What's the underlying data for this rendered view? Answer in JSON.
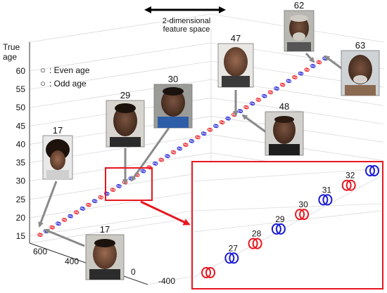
{
  "caption": {
    "line1": "2-dimensional",
    "line2": "feature space"
  },
  "axes": {
    "z_label_line1": "True",
    "z_label_line2": "age",
    "z_ticks": [
      "60",
      "55",
      "50",
      "45",
      "40",
      "35",
      "30",
      "25",
      "20",
      "15"
    ],
    "x_ticks": [
      "600",
      "400"
    ],
    "y_ticks": [
      "0",
      "-400"
    ]
  },
  "legend": {
    "even": {
      "symbol": "○",
      "text": ": Even age",
      "color": "#e8161f"
    },
    "odd": {
      "symbol": "○",
      "text": ": Odd age",
      "color": "#1a1ad6"
    }
  },
  "face_labels": [
    "17",
    "29",
    "30",
    "47",
    "62",
    "63",
    "48",
    "17"
  ],
  "inset_labels": [
    "27",
    "28",
    "29",
    "30",
    "31",
    "32"
  ],
  "chart_data": {
    "type": "scatter",
    "zlabel": "True age",
    "zlim": [
      15,
      65
    ],
    "series": [
      {
        "name": "Even age",
        "color": "#e8161f",
        "ages": [
          16,
          18,
          20,
          22,
          24,
          26,
          28,
          30,
          32,
          34,
          36,
          38,
          40,
          42,
          44,
          46,
          48,
          50,
          52,
          54,
          56,
          58,
          60,
          62
        ]
      },
      {
        "name": "Odd age",
        "color": "#1a1ad6",
        "ages": [
          17,
          19,
          21,
          23,
          25,
          27,
          29,
          31,
          33,
          35,
          37,
          39,
          41,
          43,
          45,
          47,
          49,
          51,
          53,
          55,
          57,
          59,
          61,
          63
        ]
      }
    ],
    "inset": {
      "ages": [
        26,
        27,
        28,
        29,
        30,
        31,
        32,
        33
      ],
      "labeled_ages": [
        27,
        28,
        29,
        30,
        31,
        32
      ]
    }
  }
}
